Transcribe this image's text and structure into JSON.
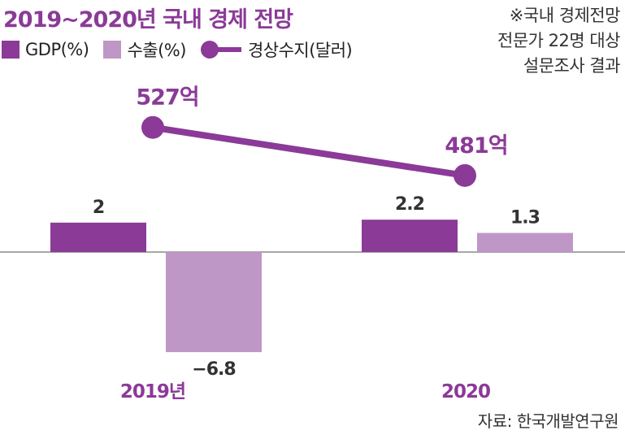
{
  "title": "2019~2020년 국내 경제 전망",
  "note": [
    "※국내 경제전망",
    "전문가 22명 대상",
    "설문조사 결과"
  ],
  "source": "자료: 한국개발연구원",
  "colors": {
    "gdp": "#8b3a98",
    "export": "#bf97c7",
    "current": "#8b3a98",
    "title": "#8b3a98"
  },
  "chart_data": {
    "type": "bar",
    "categories": [
      "2019년",
      "2020"
    ],
    "series": [
      {
        "name": "GDP(%)",
        "type": "bar",
        "values": [
          2,
          2.2
        ],
        "labels": [
          "2",
          "2.2"
        ]
      },
      {
        "name": "수출(%)",
        "type": "bar",
        "values": [
          -6.8,
          1.3
        ],
        "labels": [
          "−6.8",
          "1.3"
        ]
      },
      {
        "name": "경상수지(달러)",
        "type": "line",
        "values": [
          527,
          481
        ],
        "labels": [
          "527억",
          "481억"
        ],
        "unit": "억 달러"
      }
    ],
    "legend": "top-left",
    "grid": false
  }
}
